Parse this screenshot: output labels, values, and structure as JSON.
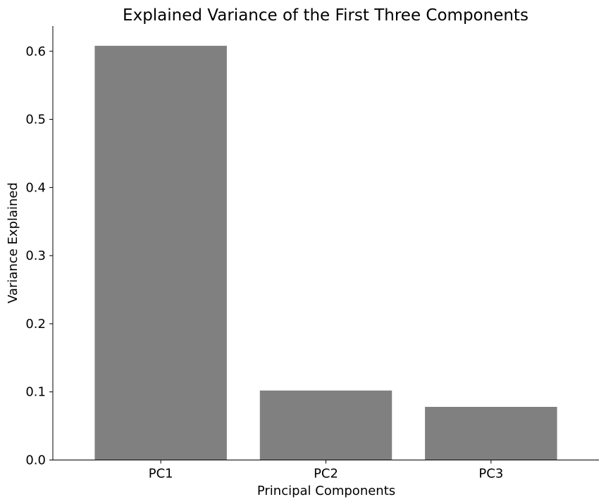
{
  "chart_data": {
    "type": "bar",
    "title": "Explained Variance of the First Three Components",
    "xlabel": "Principal Components",
    "ylabel": "Variance Explained",
    "categories": [
      "PC1",
      "PC2",
      "PC3"
    ],
    "values": [
      0.608,
      0.102,
      0.078
    ],
    "ylim": [
      0,
      0.637
    ],
    "yticks": [
      "0.0",
      "0.1",
      "0.2",
      "0.3",
      "0.4",
      "0.5",
      "0.6"
    ],
    "bar_color": "#808080",
    "grid": false,
    "legend": "none"
  }
}
